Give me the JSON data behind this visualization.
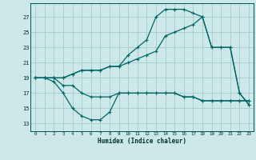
{
  "xlabel": "Humidex (Indice chaleur)",
  "bg_color": "#cce8e8",
  "grid_color": "#aacece",
  "line_color": "#006666",
  "x_ticks": [
    0,
    1,
    2,
    3,
    4,
    5,
    6,
    7,
    8,
    9,
    10,
    11,
    12,
    13,
    14,
    15,
    16,
    17,
    18,
    19,
    20,
    21,
    22,
    23
  ],
  "y_ticks": [
    13,
    15,
    17,
    19,
    21,
    23,
    25,
    27
  ],
  "xlim": [
    -0.5,
    23.5
  ],
  "ylim": [
    12.0,
    28.8
  ],
  "series": [
    {
      "x": [
        0,
        1,
        2,
        3,
        4,
        5,
        6,
        7,
        8,
        9,
        10,
        11,
        12,
        13,
        14,
        15,
        16,
        17,
        18,
        19,
        20,
        21,
        22,
        23
      ],
      "y": [
        19,
        19,
        19,
        18,
        18,
        17,
        16.5,
        16.5,
        16.5,
        17,
        17,
        17,
        17,
        17,
        17,
        17,
        16.5,
        16.5,
        16,
        16,
        16,
        16,
        16,
        16
      ]
    },
    {
      "x": [
        0,
        1,
        2,
        3,
        4,
        5,
        6,
        7,
        8,
        9,
        10,
        11,
        12,
        13,
        14,
        15,
        16,
        17,
        18,
        19,
        20,
        21,
        22,
        23
      ],
      "y": [
        19,
        19,
        18.5,
        17,
        15,
        14,
        13.5,
        13.5,
        14.5,
        17,
        17,
        17,
        17,
        17,
        17,
        17,
        16.5,
        16.5,
        16,
        16,
        16,
        16,
        16,
        16
      ]
    },
    {
      "x": [
        0,
        1,
        2,
        3,
        4,
        5,
        6,
        7,
        8,
        9,
        10,
        11,
        12,
        13,
        14,
        15,
        16,
        17,
        18,
        19,
        20,
        21,
        22,
        23
      ],
      "y": [
        19,
        19,
        19,
        19,
        19.5,
        20,
        20,
        20,
        20.5,
        20.5,
        21,
        21.5,
        22,
        22.5,
        24.5,
        25,
        25.5,
        26,
        27,
        23,
        23,
        23,
        17,
        15.5
      ]
    },
    {
      "x": [
        0,
        1,
        2,
        3,
        4,
        5,
        6,
        7,
        8,
        9,
        10,
        11,
        12,
        13,
        14,
        15,
        16,
        17,
        18,
        19,
        20,
        21,
        22,
        23
      ],
      "y": [
        19,
        19,
        19,
        19,
        19.5,
        20,
        20,
        20,
        20.5,
        20.5,
        22,
        23,
        24,
        27,
        28,
        28,
        28,
        27.5,
        27,
        23,
        23,
        23,
        17,
        15.5
      ]
    }
  ]
}
